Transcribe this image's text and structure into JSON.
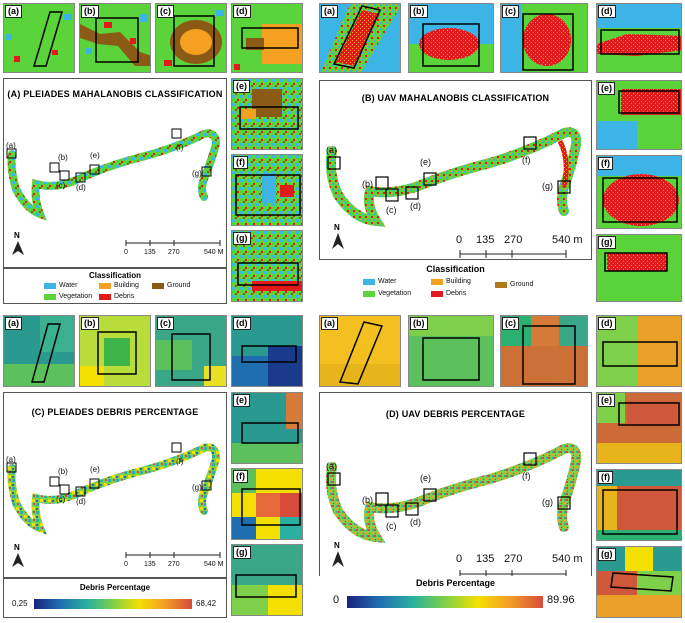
{
  "panels": {
    "A": {
      "title": "(A) PLEIADES MAHALANOBIS CLASSIFICATION",
      "legend_title": "Classification",
      "scale": {
        "ticks": [
          "0",
          "135",
          "270",
          "540 M"
        ]
      }
    },
    "B": {
      "title": "(B) UAV MAHALANOBIS CLASSIFICATION",
      "legend_title": "Classification",
      "scale": {
        "ticks": [
          "0",
          "135",
          "270",
          "540 m"
        ]
      }
    },
    "C": {
      "title": "(C) PLEIADES DEBRIS PERCENTAGE",
      "legend_title": "Debris Percentage",
      "min": "0,25",
      "max": "68,42",
      "scale": {
        "ticks": [
          "0",
          "135",
          "270",
          "540 M"
        ]
      }
    },
    "D": {
      "title": "(D) UAV DEBRIS PERCENTAGE",
      "legend_title": "Debris Percentage",
      "min": "0",
      "max": "89.96",
      "scale": {
        "ticks": [
          "0",
          "135",
          "270",
          "540 m"
        ]
      }
    }
  },
  "classes": [
    {
      "name": "Water",
      "color": "#3cb4e6"
    },
    {
      "name": "Vegetation",
      "color": "#5ad43a"
    },
    {
      "name": "Building",
      "color": "#f4a020"
    },
    {
      "name": "Debris",
      "color": "#e31a1c"
    },
    {
      "name": "Ground",
      "color": "#8b5a14"
    }
  ],
  "site_labels": [
    "(a)",
    "(b)",
    "(c)",
    "(d)",
    "(e)",
    "(f)",
    "(g)"
  ],
  "north_label": "N"
}
